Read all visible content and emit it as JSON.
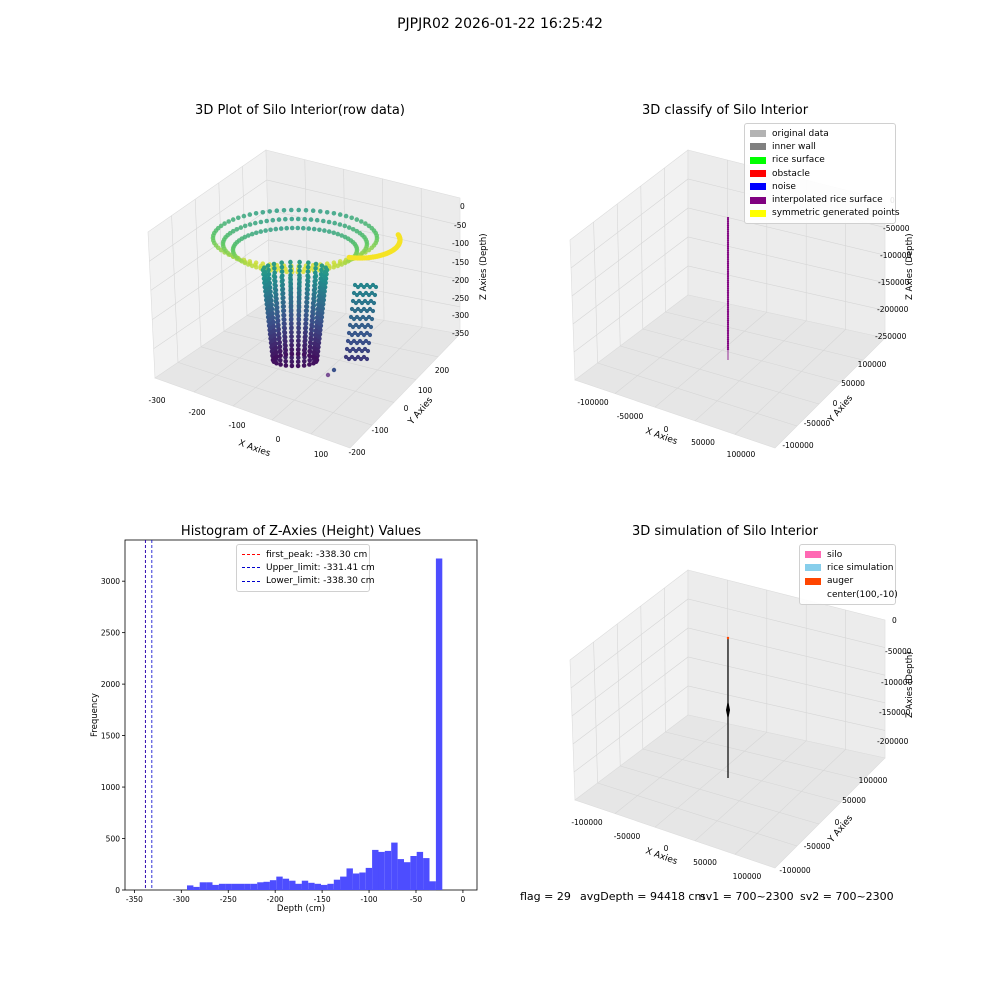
{
  "suptitle": "PJPJR02 2026-01-22 16:25:42",
  "panels": {
    "raw": {
      "title": "3D Plot of Silo Interior(row data)",
      "xlabel": "X Axies",
      "ylabel": "Y Axies",
      "zlabel": "Z Axies (Depth)",
      "xticks": [
        "-300",
        "-200",
        "-100",
        "0",
        "100"
      ],
      "yticks": [
        "-200",
        "-100",
        "0",
        "100",
        "200"
      ],
      "zticks": [
        "0",
        "-50",
        "-100",
        "-150",
        "-200",
        "-250",
        "-300",
        "-350"
      ]
    },
    "classify": {
      "title": "3D classify of Silo Interior",
      "xlabel": "X Axies",
      "ylabel": "Y Axies",
      "zlabel": "Z Axies (Depth)",
      "xticks": [
        "-100000",
        "-50000",
        "0",
        "50000",
        "100000"
      ],
      "yticks": [
        "-100000",
        "-50000",
        "0",
        "50000",
        "100000"
      ],
      "zticks": [
        "0",
        "-50000",
        "-100000",
        "-150000",
        "-200000",
        "-250000"
      ],
      "legend": [
        {
          "label": "original data",
          "color": "#b3b3b3"
        },
        {
          "label": "inner wall",
          "color": "#808080"
        },
        {
          "label": "rice surface",
          "color": "#00ff00"
        },
        {
          "label": "obstacle",
          "color": "#ff0000"
        },
        {
          "label": "noise",
          "color": "#0000ff"
        },
        {
          "label": "interpolated rice surface",
          "color": "#800080"
        },
        {
          "label": "symmetric generated points",
          "color": "#ffff00"
        }
      ]
    },
    "simulation": {
      "title": "3D simulation of Silo Interior",
      "xlabel": "X Axies",
      "ylabel": "Y Axies",
      "zlabel": "Z Axies (Depth)",
      "xticks": [
        "-100000",
        "-50000",
        "0",
        "50000",
        "100000"
      ],
      "yticks": [
        "-100000",
        "-50000",
        "0",
        "50000",
        "100000"
      ],
      "zticks": [
        "0",
        "-50000",
        "-100000",
        "-150000",
        "-200000"
      ],
      "legend": [
        {
          "label": "silo",
          "color": "#ff69b4"
        },
        {
          "label": "rice simulation",
          "color": "#87ceeb"
        },
        {
          "label": "auger",
          "color": "#ff4500"
        },
        {
          "label": "center(100,-10)",
          "color": ""
        }
      ]
    }
  },
  "status": {
    "flag": "flag = 29",
    "avg_depth": "avgDepth = 94418 cm",
    "sv1": "sv1 = 700~2300",
    "sv2": "sv2 = 700~2300"
  },
  "chart_data": [
    {
      "type": "bar",
      "title": "Histogram of Z-Axies (Height) Values",
      "xlabel": "Depth (cm)",
      "ylabel": "Frequency",
      "xlim": [
        -360,
        15
      ],
      "ylim": [
        0,
        3400
      ],
      "xticks": [
        -350,
        -300,
        -250,
        -200,
        -150,
        -100,
        -50,
        0
      ],
      "yticks": [
        0,
        500,
        1000,
        1500,
        2000,
        2500,
        3000
      ],
      "bar_color": "#4d4dff",
      "bin_width": 6.8,
      "x": [
        -290.6,
        -283.8,
        -277.0,
        -270.2,
        -263.4,
        -256.6,
        -249.8,
        -243.0,
        -236.2,
        -229.4,
        -222.6,
        -215.8,
        -209.0,
        -202.2,
        -195.4,
        -188.6,
        -181.8,
        -175.0,
        -168.2,
        -161.4,
        -154.6,
        -147.8,
        -141.0,
        -134.2,
        -127.4,
        -120.6,
        -113.8,
        -107.0,
        -100.2,
        -93.4,
        -86.6,
        -79.8,
        -73.0,
        -66.2,
        -59.4,
        -52.6,
        -45.8,
        -39.0,
        -32.2,
        -25.4,
        -18.6,
        -11.8,
        -5.0
      ],
      "values": [
        45,
        30,
        75,
        75,
        50,
        60,
        60,
        60,
        60,
        60,
        60,
        75,
        80,
        95,
        130,
        110,
        90,
        60,
        90,
        70,
        60,
        50,
        60,
        100,
        130,
        210,
        160,
        170,
        215,
        390,
        370,
        380,
        460,
        300,
        270,
        330,
        370,
        310,
        85,
        3220,
        0,
        0,
        0
      ],
      "lines": [
        {
          "name": "first_peak: -338.30 cm",
          "x": -338.3,
          "color": "#ff0000"
        },
        {
          "name": "Upper_limit: -331.41 cm",
          "x": -331.41,
          "color": "#0000cc"
        },
        {
          "name": "Lower_limit: -338.30 cm",
          "x": -338.3,
          "color": "#0000cc"
        }
      ]
    }
  ]
}
